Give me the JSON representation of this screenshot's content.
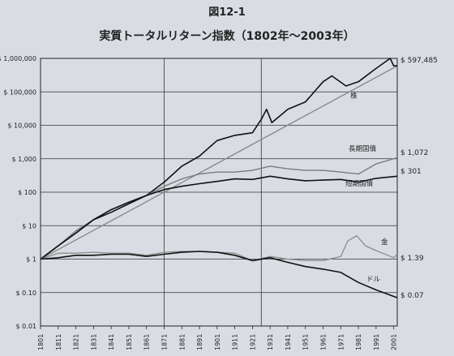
{
  "figure_label": "図12-1",
  "title": "実質トータルリターン指数（1802年～2003年）",
  "chart_data": {
    "type": "line",
    "y_scale": "log",
    "xlim": [
      1801,
      2003
    ],
    "ylim": [
      0.01,
      1000000
    ],
    "grid": "on",
    "y_ticks": [
      {
        "value": 1000000,
        "label": "$ 1,000,000"
      },
      {
        "value": 100000,
        "label": "$ 100,000"
      },
      {
        "value": 10000,
        "label": "$ 10,000"
      },
      {
        "value": 1000,
        "label": "$ 1,000"
      },
      {
        "value": 100,
        "label": "$ 100"
      },
      {
        "value": 10,
        "label": "$ 10"
      },
      {
        "value": 1,
        "label": "$ 1"
      },
      {
        "value": 0.1,
        "label": "$ 0.10"
      },
      {
        "value": 0.01,
        "label": "$ 0.01"
      }
    ],
    "x_ticks": [
      "1801",
      "1811",
      "1821",
      "1831",
      "1841",
      "1851",
      "1861",
      "1871",
      "1881",
      "1891",
      "1901",
      "1911",
      "1921",
      "1931",
      "1941",
      "1951",
      "1961",
      "1971",
      "1981",
      "1991",
      "2001"
    ],
    "vertical_lines": [
      1871,
      1926
    ],
    "trend_line": {
      "x": [
        1801,
        2003
      ],
      "y": [
        1,
        597485
      ]
    },
    "series": [
      {
        "name": "株",
        "end_label": "$ 597,485",
        "x": [
          1801,
          1811,
          1821,
          1831,
          1841,
          1851,
          1861,
          1871,
          1881,
          1891,
          1901,
          1911,
          1921,
          1926,
          1929,
          1932,
          1941,
          1951,
          1961,
          1966,
          1974,
          1981,
          1991,
          1999,
          2001,
          2003
        ],
        "y": [
          1,
          2.5,
          6,
          15,
          25,
          45,
          80,
          200,
          600,
          1200,
          3500,
          5000,
          6000,
          15000,
          30000,
          12000,
          30000,
          50000,
          200000,
          300000,
          150000,
          200000,
          500000,
          1000000,
          600000,
          597485
        ]
      },
      {
        "name": "長期国債",
        "end_label": "$ 1,072",
        "x": [
          1801,
          1811,
          1821,
          1831,
          1841,
          1851,
          1861,
          1871,
          1881,
          1891,
          1901,
          1911,
          1921,
          1931,
          1941,
          1951,
          1961,
          1971,
          1981,
          1991,
          2003
        ],
        "y": [
          1,
          2.5,
          7,
          15,
          30,
          50,
          80,
          150,
          250,
          350,
          400,
          400,
          450,
          600,
          500,
          450,
          450,
          400,
          350,
          700,
          1072
        ]
      },
      {
        "name": "短期国債",
        "end_label": "$ 301",
        "x": [
          1801,
          1811,
          1821,
          1831,
          1841,
          1851,
          1861,
          1871,
          1881,
          1891,
          1901,
          1911,
          1921,
          1931,
          1941,
          1951,
          1961,
          1971,
          1981,
          1991,
          2003
        ],
        "y": [
          1,
          2.5,
          6,
          15,
          30,
          50,
          80,
          120,
          150,
          180,
          210,
          250,
          240,
          300,
          250,
          220,
          230,
          240,
          200,
          260,
          301
        ]
      },
      {
        "name": "金",
        "end_label": "$ 1.39",
        "x": [
          1801,
          1811,
          1821,
          1831,
          1841,
          1851,
          1861,
          1871,
          1881,
          1891,
          1901,
          1911,
          1921,
          1931,
          1941,
          1951,
          1961,
          1971,
          1975,
          1980,
          1985,
          1991,
          2001,
          2003
        ],
        "y": [
          1,
          1.5,
          1.5,
          1.6,
          1.5,
          1.5,
          1.3,
          1.6,
          1.7,
          1.7,
          1.6,
          1.5,
          0.9,
          1.2,
          1,
          0.9,
          0.9,
          1.2,
          3.5,
          5,
          2.5,
          1.8,
          1.1,
          1.39
        ]
      },
      {
        "name": "ドル",
        "end_label": "$ 0.07",
        "x": [
          1801,
          1811,
          1821,
          1831,
          1841,
          1851,
          1861,
          1871,
          1881,
          1891,
          1901,
          1911,
          1921,
          1931,
          1941,
          1951,
          1961,
          1971,
          1981,
          1991,
          2003
        ],
        "y": [
          1,
          1.1,
          1.3,
          1.3,
          1.4,
          1.4,
          1.2,
          1.4,
          1.6,
          1.7,
          1.6,
          1.3,
          0.9,
          1.1,
          0.8,
          0.6,
          0.5,
          0.4,
          0.2,
          0.12,
          0.07
        ]
      }
    ],
    "colors": {
      "stock": "#111111",
      "bond_long": "#7a7a7a",
      "bill_short": "#111111",
      "gold": "#8c8c8c",
      "dollar": "#111111",
      "trend": "#8a8a8a"
    }
  }
}
